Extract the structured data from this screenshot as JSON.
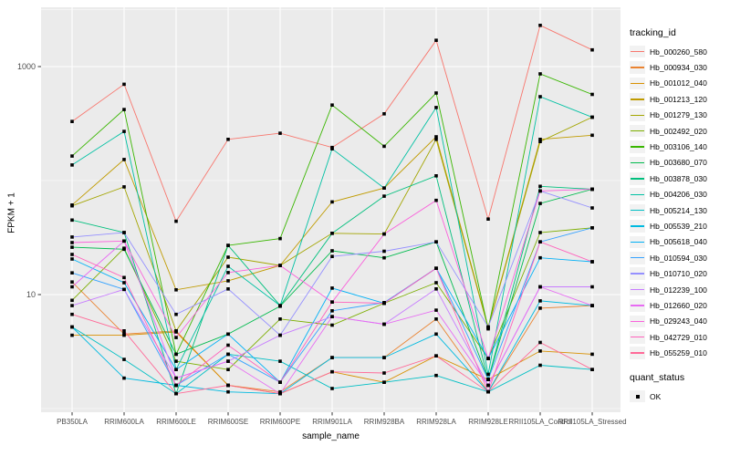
{
  "chart_data": {
    "type": "line",
    "title": "",
    "xlabel": "sample_name",
    "ylabel": "FPKM + 1",
    "y_scale": "log10",
    "y_ticks": [
      10,
      1000
    ],
    "y_minor_ticks": [
      1,
      100,
      3162
    ],
    "ylim": [
      0.93,
      3300
    ],
    "grid": true,
    "panel_bg": "#EBEBEB",
    "grid_color": "#FFFFFF",
    "tick_label_color": "#4D4D4D",
    "point_color": "#000000",
    "categories": [
      "PB350LA",
      "RRIM600LA",
      "RRIM600LE",
      "RRIM600SE",
      "RRIM600PE",
      "RRIM901LA",
      "RRIM928BA",
      "RRIM928LA",
      "RRIM928LE",
      "RRII105LA_Control",
      "RRII105LA_Stressed"
    ],
    "series": [
      {
        "name": "Hb_000260_580",
        "color": "#F8766D",
        "values": [
          330,
          700,
          44,
          230,
          260,
          195,
          385,
          1700,
          46,
          2300,
          1400
        ]
      },
      {
        "name": "Hb_000934_030",
        "color": "#EA8331",
        "values": [
          12.9,
          4.5,
          4.8,
          1.6,
          1.4,
          2.8,
          2.8,
          6.1,
          1.4,
          7.6,
          8.0
        ]
      },
      {
        "name": "Hb_001012_040",
        "color": "#D89000",
        "values": [
          4.4,
          4.4,
          4.7,
          1.6,
          1.35,
          2.1,
          1.7,
          2.9,
          1.8,
          3.2,
          3.0
        ]
      },
      {
        "name": "Hb_001213_120",
        "color": "#C09B00",
        "values": [
          61,
          153,
          11,
          13.2,
          18,
          65,
          86,
          242,
          5.2,
          230,
          250
        ]
      },
      {
        "name": "Hb_001279_130",
        "color": "#A3A500",
        "values": [
          60,
          88,
          4.8,
          21.3,
          18,
          34.5,
          34,
          230,
          5.1,
          220,
          360
        ]
      },
      {
        "name": "Hb_002492_020",
        "color": "#7CAE00",
        "values": [
          8.9,
          25.5,
          2.6,
          2.2,
          6.1,
          5.4,
          8.4,
          12.7,
          2.75,
          35,
          38.5
        ]
      },
      {
        "name": "Hb_003106_140",
        "color": "#39B600",
        "values": [
          164,
          420,
          3.0,
          27,
          31,
          460,
          200,
          586,
          5.0,
          863,
          570
        ]
      },
      {
        "name": "Hb_003680_070",
        "color": "#00BB4E",
        "values": [
          26,
          25,
          3.0,
          4.5,
          7.9,
          24.2,
          21,
          29,
          1.8,
          63,
          84
        ]
      },
      {
        "name": "Hb_003878_030",
        "color": "#00BF7D",
        "values": [
          45,
          35,
          1.35,
          27,
          8,
          34.5,
          73,
          110,
          1.8,
          89,
          84
        ]
      },
      {
        "name": "Hb_004206_030",
        "color": "#00C1A3",
        "values": [
          137,
          270,
          2.2,
          17.7,
          8,
          190,
          86,
          437,
          2.0,
          545,
          360
        ]
      },
      {
        "name": "Hb_005214_130",
        "color": "#00BFC4",
        "values": [
          5.2,
          2.7,
          1.35,
          3.0,
          2.6,
          1.5,
          1.7,
          1.95,
          1.4,
          2.4,
          2.2
        ]
      },
      {
        "name": "Hb_005539_210",
        "color": "#00BAE0",
        "values": [
          5.2,
          1.85,
          1.6,
          1.4,
          1.35,
          2.8,
          2.8,
          4.5,
          1.4,
          8.8,
          8.0
        ]
      },
      {
        "name": "Hb_005618_040",
        "color": "#00B0F6",
        "values": [
          20.5,
          12.7,
          2.2,
          4.5,
          1.7,
          11.4,
          8.4,
          17,
          2.75,
          21,
          19.4
        ]
      },
      {
        "name": "Hb_010594_030",
        "color": "#35A2FF",
        "values": [
          15.5,
          11.1,
          1.6,
          3.0,
          1.7,
          7.2,
          8.5,
          17,
          1.8,
          29,
          38.5
        ]
      },
      {
        "name": "Hb_010710_020",
        "color": "#9590FF",
        "values": [
          32,
          35,
          6.7,
          11.2,
          4.4,
          21.6,
          24,
          29,
          5.2,
          81,
          57.5
        ]
      },
      {
        "name": "Hb_012239_100",
        "color": "#C77CFF",
        "values": [
          8.0,
          11.1,
          1.85,
          2.6,
          4.4,
          6.4,
          5.5,
          11.2,
          1.6,
          11.7,
          11.7
        ]
      },
      {
        "name": "Hb_012660_020",
        "color": "#E76BF3",
        "values": [
          11.7,
          29.5,
          1.85,
          2.6,
          1.35,
          6.4,
          5.5,
          7.3,
          1.6,
          11.7,
          8.0
        ]
      },
      {
        "name": "Hb_029243_040",
        "color": "#FA62DB",
        "values": [
          28.6,
          29.5,
          4.2,
          15.6,
          18,
          8.6,
          34,
          67,
          2.75,
          81,
          84
        ]
      },
      {
        "name": "Hb_042729_010",
        "color": "#FF62BC",
        "values": [
          22.5,
          14.1,
          1.6,
          3.6,
          1.7,
          8.6,
          8.4,
          17,
          1.4,
          29,
          19.4
        ]
      },
      {
        "name": "Hb_055259_010",
        "color": "#FF6A98",
        "values": [
          6.7,
          4.8,
          1.35,
          1.6,
          1.35,
          2.1,
          2.05,
          2.9,
          1.4,
          3.8,
          2.2
        ]
      }
    ]
  },
  "legend": {
    "tracking_title": "tracking_id",
    "quant_title": "quant_status",
    "quant_items": [
      {
        "label": "OK"
      }
    ],
    "key_bg": "#F2F2F2"
  }
}
